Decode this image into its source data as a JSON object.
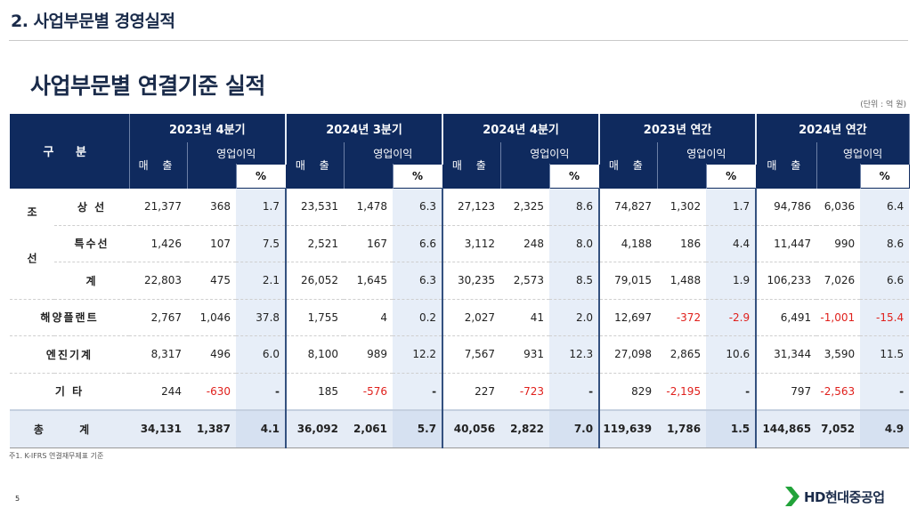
{
  "header": {
    "section_title": "2. 사업부문별 경영실적",
    "main_title": "사업부문별 연결기준 실적",
    "unit": "(단위 : 억 원)"
  },
  "table": {
    "category_header": "구 분",
    "periods": [
      "2023년 4분기",
      "2024년 3분기",
      "2024년 4분기",
      "2023년 연간",
      "2024년 연간"
    ],
    "sales_label": "매 출",
    "op_label": "영업이익",
    "pct_label": "%",
    "group_shipbuilding": "조 선",
    "rows": [
      {
        "label": "상 선",
        "cells": [
          "21,377",
          "368",
          "1.7",
          "23,531",
          "1,478",
          "6.3",
          "27,123",
          "2,325",
          "8.6",
          "74,827",
          "1,302",
          "1.7",
          "94,786",
          "6,036",
          "6.4"
        ]
      },
      {
        "label": "특수선",
        "cells": [
          "1,426",
          "107",
          "7.5",
          "2,521",
          "167",
          "6.6",
          "3,112",
          "248",
          "8.0",
          "4,188",
          "186",
          "4.4",
          "11,447",
          "990",
          "8.6"
        ]
      },
      {
        "label": "계",
        "cells": [
          "22,803",
          "475",
          "2.1",
          "26,052",
          "1,645",
          "6.3",
          "30,235",
          "2,573",
          "8.5",
          "79,015",
          "1,488",
          "1.9",
          "106,233",
          "7,026",
          "6.6"
        ]
      },
      {
        "label": "해양플랜트",
        "cells": [
          "2,767",
          "1,046",
          "37.8",
          "1,755",
          "4",
          "0.2",
          "2,027",
          "41",
          "2.0",
          "12,697",
          "-372",
          "-2.9",
          "6,491",
          "-1,001",
          "-15.4"
        ]
      },
      {
        "label": "엔진기계",
        "cells": [
          "8,317",
          "496",
          "6.0",
          "8,100",
          "989",
          "12.2",
          "7,567",
          "931",
          "12.3",
          "27,098",
          "2,865",
          "10.6",
          "31,344",
          "3,590",
          "11.5"
        ]
      },
      {
        "label": "기 타",
        "cells": [
          "244",
          "-630",
          "-",
          "185",
          "-576",
          "-",
          "227",
          "-723",
          "-",
          "829",
          "-2,195",
          "-",
          "797",
          "-2,563",
          "-"
        ]
      }
    ],
    "total": {
      "label": "총 계",
      "cells": [
        "34,131",
        "1,387",
        "4.1",
        "36,092",
        "2,061",
        "5.7",
        "40,056",
        "2,822",
        "7.0",
        "119,639",
        "1,786",
        "1.5",
        "144,865",
        "7,052",
        "4.9"
      ]
    },
    "colors": {
      "header_bg": "#0f2a5e",
      "negative": "#e0201c",
      "pct_bg": "#e7eef8"
    }
  },
  "footer": {
    "note": "주1. K-IFRS 연결재무제표 기준",
    "page_number": "5",
    "logo_text": "HD현대중공업",
    "logo_icon": "hd-chevron-icon"
  }
}
